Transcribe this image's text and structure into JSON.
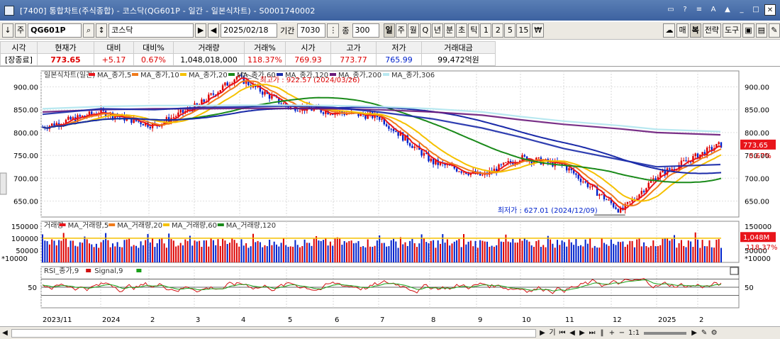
{
  "window": {
    "title": "[7400]  통합차트(주식종합) - 코스닥(QG601P - 일간 - 일본식차트) - S0001740002"
  },
  "toolbar": {
    "code": "QG601P",
    "name": "코스닥",
    "date": "2025/02/18",
    "period_label": "기간",
    "period_value": "7030",
    "count_label": "종",
    "count_value": "300",
    "intervals": [
      "일",
      "주",
      "월",
      "Q",
      "년",
      "분",
      "초",
      "틱",
      "1",
      "2",
      "5",
      "15"
    ],
    "selected_interval": "일",
    "right_buttons": [
      "매",
      "복",
      "전략",
      "도구"
    ]
  },
  "quote": {
    "headers": [
      "시각",
      "현재가",
      "대비",
      "대비%",
      "거래량",
      "거래%",
      "시가",
      "고가",
      "저가",
      "거래대금"
    ],
    "values": [
      "[장종료]",
      "773.65",
      "+5.17",
      "0.67%",
      "1,048,018,000",
      "118.37%",
      "769.93",
      "773.77",
      "765.99",
      "99,472억원"
    ]
  },
  "price_panel": {
    "legend": [
      "일본식차트(일간)",
      "MA_종가,5",
      "MA_종가,10",
      "MA_종가,20",
      "MA_종가,60",
      "MA_종가,120",
      "MA_종가,200",
      "MA_종가,306"
    ],
    "y_ticks": [
      "900.00",
      "850.00",
      "800.00",
      "750.00",
      "700.00",
      "650.00"
    ],
    "high_note": "최고가 : 922.57 (2024/03/26)",
    "low_note": "최저가 : 627.01 (2024/12/09)",
    "last_price_tag": "773.65",
    "last_pct_tag": "0.67%"
  },
  "volume_panel": {
    "legend": [
      "거래량",
      "MA_거래량,5",
      "MA_거래량,20",
      "MA_거래량,60",
      "MA_거래량,120"
    ],
    "y_ticks": [
      "150000",
      "100000",
      "50000"
    ],
    "unit": "*10000",
    "last_volume_tag": "1,048M",
    "last_pct_tag": "118.37%"
  },
  "rsi_panel": {
    "legend": [
      "RSI_종가,9",
      "Signal,9"
    ],
    "y_ticks": [
      "50"
    ]
  },
  "x_axis": {
    "labels": [
      "2023/11",
      "2024",
      "2",
      "3",
      "4",
      "5",
      "6",
      "7",
      "8",
      "9",
      "10",
      "11",
      "12",
      "2025",
      "2"
    ]
  },
  "scroll": {
    "zoom": "1:1"
  },
  "colors": {
    "up": "#dd0000",
    "down": "#0022cc",
    "ma5": "#e8151b",
    "ma10": "#f07a1a",
    "ma20": "#f5c100",
    "ma60": "#1a8a1a",
    "ma120": "#1a2aa8",
    "ma200": "#6a1a7a",
    "ma306": "#b8e8f0"
  },
  "chart_data": {
    "type": "candlestick",
    "title": "일본식차트(일간)",
    "series": [
      {
        "name": "일본식차트(일간)",
        "x": [
          "2023/11",
          "2024/01",
          "2024/02",
          "2024/03",
          "2024/03/26",
          "2024/05",
          "2024/06",
          "2024/07",
          "2024/08",
          "2024/09",
          "2024/10",
          "2024/11",
          "2024/12/09",
          "2025/01",
          "2025/02/18"
        ],
        "values": [
          812,
          845,
          815,
          860,
          922.57,
          858,
          845,
          835,
          735,
          705,
          745,
          728,
          627.01,
          705,
          773.65
        ]
      },
      {
        "name": "MA_종가,120",
        "x": [
          "2023/11",
          "2024/01",
          "2024/02",
          "2024/03",
          "2024/03/26",
          "2024/05",
          "2024/06",
          "2024/07",
          "2024/08",
          "2024/09",
          "2024/10",
          "2024/11",
          "2024/12/09",
          "2025/01",
          "2025/02/18"
        ],
        "values": [
          840,
          852,
          850,
          855,
          856,
          858,
          855,
          845,
          830,
          810,
          790,
          765,
          740,
          725,
          730
        ]
      },
      {
        "name": "MA_종가,306",
        "x": [
          "2023/11",
          "2024/01",
          "2024/02",
          "2024/03",
          "2024/03/26",
          "2024/05",
          "2024/06",
          "2024/07",
          "2024/08",
          "2024/09",
          "2024/10",
          "2024/11",
          "2024/12/09",
          "2025/01",
          "2025/02/18"
        ],
        "values": [
          845,
          850,
          852,
          852,
          853,
          853,
          852,
          850,
          845,
          838,
          828,
          818,
          808,
          800,
          795
        ]
      }
    ],
    "ylim": [
      615,
      935
    ]
  }
}
